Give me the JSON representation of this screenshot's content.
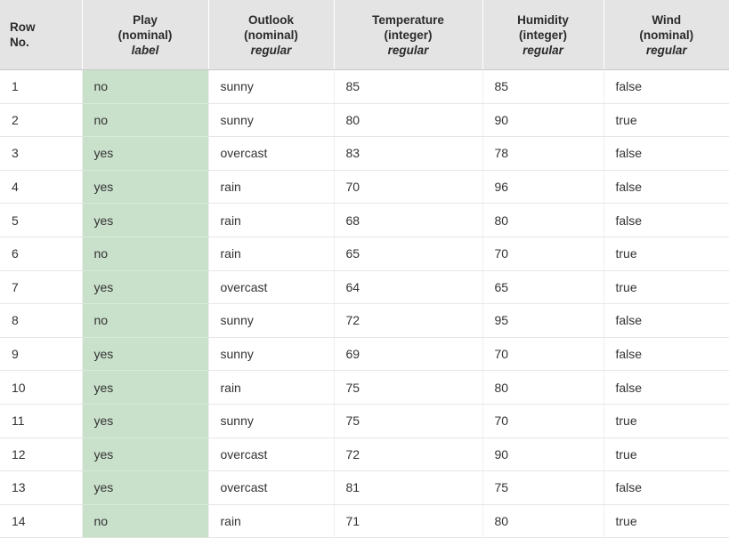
{
  "columns": [
    {
      "name": "Row",
      "type": "No.",
      "role": ""
    },
    {
      "name": "Play",
      "type": "(nominal)",
      "role": "label"
    },
    {
      "name": "Outlook",
      "type": "(nominal)",
      "role": "regular"
    },
    {
      "name": "Temperature",
      "type": "(integer)",
      "role": "regular"
    },
    {
      "name": "Humidity",
      "type": "(integer)",
      "role": "regular"
    },
    {
      "name": "Wind",
      "type": "(nominal)",
      "role": "regular"
    }
  ],
  "colors": {
    "header_bg": "#e4e4e4",
    "label_column_bg": "#c9e0cb",
    "text": "#333333"
  },
  "rows": [
    [
      "1",
      "no",
      "sunny",
      "85",
      "85",
      "false"
    ],
    [
      "2",
      "no",
      "sunny",
      "80",
      "90",
      "true"
    ],
    [
      "3",
      "yes",
      "overcast",
      "83",
      "78",
      "false"
    ],
    [
      "4",
      "yes",
      "rain",
      "70",
      "96",
      "false"
    ],
    [
      "5",
      "yes",
      "rain",
      "68",
      "80",
      "false"
    ],
    [
      "6",
      "no",
      "rain",
      "65",
      "70",
      "true"
    ],
    [
      "7",
      "yes",
      "overcast",
      "64",
      "65",
      "true"
    ],
    [
      "8",
      "no",
      "sunny",
      "72",
      "95",
      "false"
    ],
    [
      "9",
      "yes",
      "sunny",
      "69",
      "70",
      "false"
    ],
    [
      "10",
      "yes",
      "rain",
      "75",
      "80",
      "false"
    ],
    [
      "11",
      "yes",
      "sunny",
      "75",
      "70",
      "true"
    ],
    [
      "12",
      "yes",
      "overcast",
      "72",
      "90",
      "true"
    ],
    [
      "13",
      "yes",
      "overcast",
      "81",
      "75",
      "false"
    ],
    [
      "14",
      "no",
      "rain",
      "71",
      "80",
      "true"
    ]
  ]
}
